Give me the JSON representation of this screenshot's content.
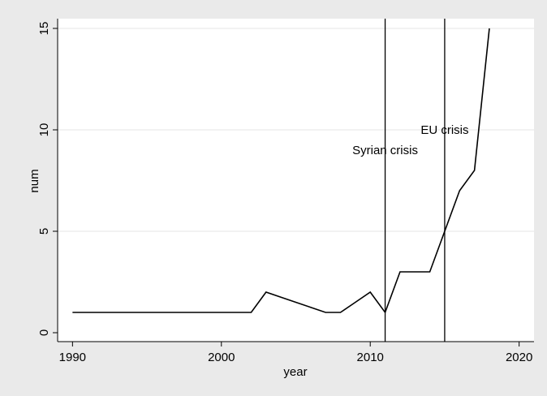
{
  "chart_data": {
    "type": "line",
    "title": "",
    "xlabel": "year",
    "ylabel": "num",
    "xlim": [
      1989,
      2021
    ],
    "ylim": [
      -0.5,
      15
    ],
    "xticks": [
      1990,
      2000,
      2010,
      2020
    ],
    "yticks": [
      0,
      5,
      10,
      15
    ],
    "grid": true,
    "legend": "none",
    "colors": {
      "line": "#000000",
      "grid": "#e6e6e6",
      "plot_bg": "#ffffff",
      "outer_bg": "#eaeaea"
    },
    "series": [
      {
        "x": [
          1990,
          1991,
          1992,
          1993,
          1994,
          1995,
          1996,
          1997,
          1998,
          1999,
          2000,
          2001,
          2002,
          2003,
          2004,
          2005,
          2006,
          2007,
          2008,
          2009,
          2010,
          2011,
          2012,
          2013,
          2014,
          2015,
          2016,
          2017,
          2018
        ],
        "values": [
          1,
          1,
          1,
          1,
          1,
          1,
          1,
          1,
          1,
          1,
          1,
          1,
          1,
          2,
          1.75,
          1.5,
          1.25,
          1,
          1,
          1.5,
          2,
          1,
          3,
          3,
          3,
          5,
          7,
          8,
          15
        ]
      }
    ],
    "annotations": [
      {
        "x": 2011,
        "label": "Syrian crisis",
        "label_y": 9
      },
      {
        "x": 2015,
        "label": "EU crisis",
        "label_y": 10
      }
    ]
  }
}
